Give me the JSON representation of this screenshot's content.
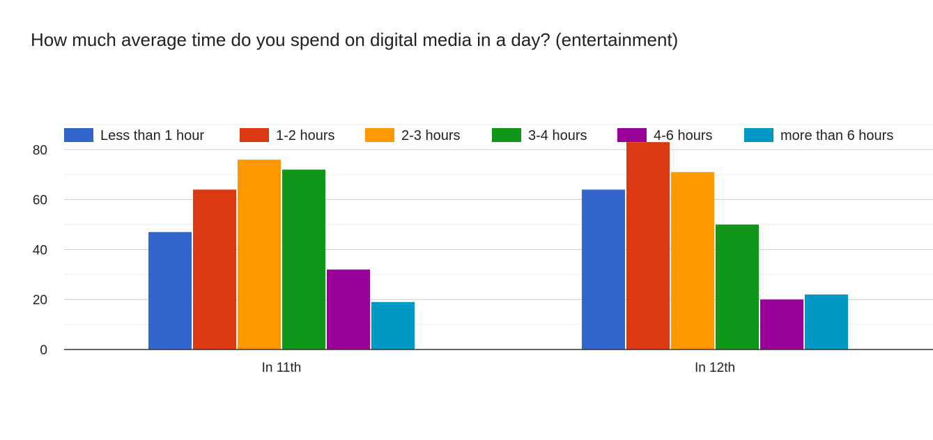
{
  "chart_data": {
    "type": "bar",
    "title": "How much average time do you spend on digital media in a day? (entertainment)",
    "categories": [
      "In 11th",
      "In 12th"
    ],
    "series": [
      {
        "name": "Less than 1 hour",
        "color": "#3366cc",
        "values": [
          47,
          64
        ]
      },
      {
        "name": "1-2 hours",
        "color": "#dc3912",
        "values": [
          64,
          83
        ]
      },
      {
        "name": "2-3 hours",
        "color": "#ff9900",
        "values": [
          76,
          71
        ]
      },
      {
        "name": "3-4 hours",
        "color": "#109618",
        "values": [
          72,
          50
        ]
      },
      {
        "name": "4-6 hours",
        "color": "#990099",
        "values": [
          32,
          20
        ]
      },
      {
        "name": "more than 6 hours",
        "color": "#0099c6",
        "values": [
          19,
          22
        ]
      }
    ],
    "ylim": [
      0,
      90
    ],
    "y_ticks": [
      "0",
      "20",
      "40",
      "60",
      "80"
    ],
    "grid": true,
    "legend_position": "top"
  }
}
